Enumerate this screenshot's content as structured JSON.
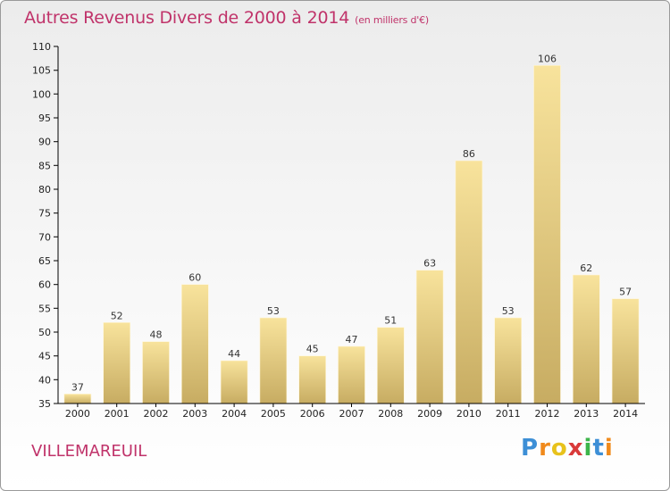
{
  "title": "Autres Revenus Divers de 2000 à 2014",
  "subtitle": "(en milliers d'€)",
  "location": "VILLEMAREUIL",
  "logo": {
    "letters": [
      "P",
      "r",
      "o",
      "x",
      "i",
      "t",
      "i"
    ],
    "colors": [
      "#3d8fd6",
      "#f08a1c",
      "#e8c21c",
      "#d93a3a",
      "#3db54a",
      "#3d8fd6",
      "#f08a1c"
    ]
  },
  "colors": {
    "title": "#c0336a",
    "bar_top": "#f8e39c",
    "bar_bottom": "#c7ac62",
    "axis": "#000000"
  },
  "chart_data": {
    "type": "bar",
    "categories": [
      "2000",
      "2001",
      "2002",
      "2003",
      "2004",
      "2005",
      "2006",
      "2007",
      "2008",
      "2009",
      "2010",
      "2011",
      "2012",
      "2013",
      "2014"
    ],
    "values": [
      37,
      52,
      48,
      60,
      44,
      53,
      45,
      47,
      51,
      63,
      86,
      53,
      106,
      62,
      57
    ],
    "data_labels": [
      "37",
      "52",
      "48",
      "60",
      "44",
      "53",
      "45",
      "47",
      "51",
      "63",
      "86",
      "53",
      "106",
      "62",
      "57"
    ],
    "ylim": [
      35,
      110
    ],
    "yticks": [
      35,
      40,
      45,
      50,
      55,
      60,
      65,
      70,
      75,
      80,
      85,
      90,
      95,
      100,
      105,
      110
    ],
    "grid": false,
    "legend": "none"
  }
}
